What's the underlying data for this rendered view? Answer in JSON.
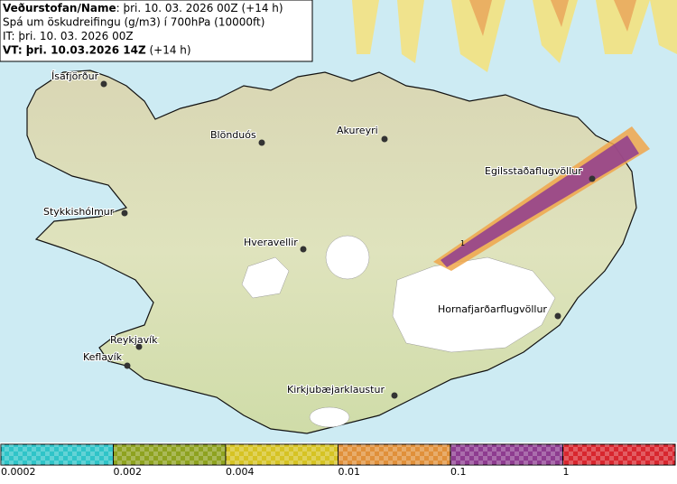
{
  "header": {
    "lines": [
      {
        "bold": "Veðurstofan/Name",
        "text": ": þri. 10. 03. 2026 00Z (+14 h)"
      },
      {
        "bold": "",
        "text": "Spá um öskudreifingu (g/m3) í 700hPa (10000ft)"
      },
      {
        "bold": "",
        "text": "IT: þri. 10. 03. 2026 00Z"
      },
      {
        "bold": "VT: þri. 10.03.2026 14Z",
        "text": " (+14 h)"
      }
    ]
  },
  "places": [
    "Ísafjörður",
    "Blönduós",
    "Akureyri",
    "Egilsstaðaflugvöllur",
    "Stykkishólmur",
    "Hveravellir",
    "Hornafjarðarflugvöllur",
    "Reykjavík",
    "Keflavík",
    "Kirkjubæjarklaustur"
  ],
  "contour_label": "1",
  "legend": {
    "colors": [
      "#2fc4c8",
      "#8ea21f",
      "#d6c323",
      "#e0903a",
      "#8e3c90",
      "#d8262e"
    ],
    "labels": [
      "0.0002",
      "0.002",
      "0.004",
      "0.01",
      "0.1",
      "1"
    ]
  }
}
